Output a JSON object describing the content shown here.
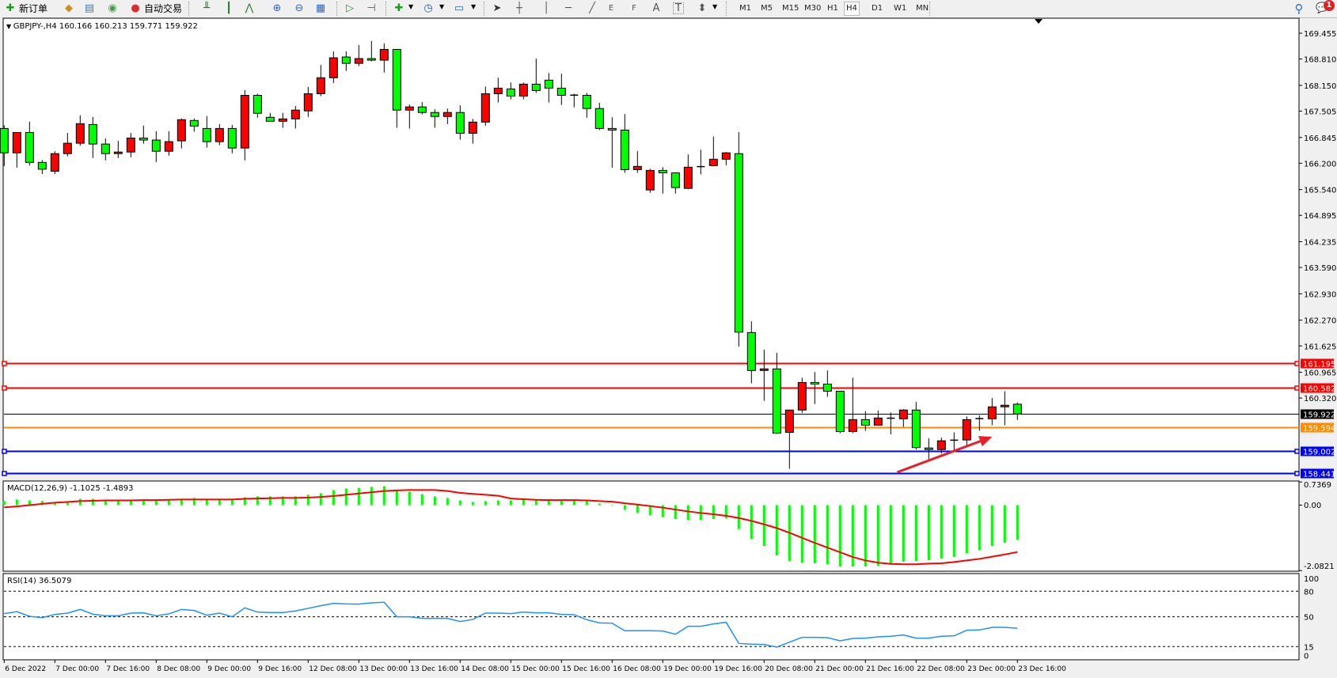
{
  "toolbar": {
    "new_order_label": "新订单",
    "auto_trading_label": "自动交易",
    "icons": [
      "new-order-icon",
      "market-watch-icon",
      "navigator-icon",
      "signal-icon",
      "auto-trading-icon",
      "bar-chart-icon",
      "candlestick-icon",
      "line-chart-icon",
      "zoom-in-icon",
      "zoom-out-icon",
      "tile-windows-icon",
      "auto-scroll-icon",
      "chart-shift-icon",
      "indicators-icon",
      "periods-icon",
      "templates-icon",
      "cursor-icon",
      "crosshair-icon",
      "vertical-line-icon",
      "horizontal-line-icon",
      "trendline-icon",
      "equidistant-channel-icon",
      "fibonacci-icon",
      "text-icon",
      "text-label-icon",
      "arrows-icon",
      "search-icon",
      "notifications-icon"
    ],
    "tool_letters": {
      "channel": "E",
      "fib": "F",
      "text": "A",
      "label": "T"
    },
    "periods": [
      "M1",
      "M5",
      "M15",
      "M30",
      "H1",
      "H4",
      "D1",
      "W1",
      "MN"
    ],
    "selected_period": "H4",
    "notification_count": "1"
  },
  "chart_header": "GBPJPY-,H4  160.166 160.213 159.771 159.922",
  "colors": {
    "bull": "#ff0000",
    "bear": "#00ff00",
    "signal": "#ff0000",
    "rsi": "#1e90ff",
    "bid_line": "#000000"
  },
  "chart_data": [
    {
      "type": "candlestick",
      "symbol": "GBPJPY-",
      "timeframe": "H4",
      "ylim": [
        158.335,
        169.455
      ],
      "y_ticks": [
        "169.455",
        "168.810",
        "168.150",
        "167.505",
        "166.845",
        "166.200",
        "165.540",
        "164.895",
        "164.235",
        "163.590",
        "162.930",
        "162.270",
        "161.625",
        "160.965",
        "160.320"
      ],
      "x_tick_labels": [
        "6 Dec 2022",
        "7 Dec 00:00",
        "7 Dec 16:00",
        "8 Dec 08:00",
        "9 Dec 00:00",
        "9 Dec 16:00",
        "12 Dec 08:00",
        "13 Dec 00:00",
        "13 Dec 16:00",
        "14 Dec 08:00",
        "15 Dec 00:00",
        "15 Dec 16:00",
        "16 Dec 08:00",
        "19 Dec 00:00",
        "19 Dec 16:00",
        "20 Dec 08:00",
        "21 Dec 00:00",
        "21 Dec 16:00",
        "22 Dec 08:00",
        "23 Dec 00:00",
        "23 Dec 16:00"
      ],
      "ohlc": [
        [
          167.07,
          167.15,
          166.13,
          166.46
        ],
        [
          166.46,
          166.97,
          166.09,
          166.97
        ],
        [
          166.97,
          167.24,
          166.14,
          166.22
        ],
        [
          166.22,
          166.28,
          165.93,
          166.05
        ],
        [
          166.0,
          166.5,
          165.93,
          166.44
        ],
        [
          166.44,
          166.96,
          166.37,
          166.7
        ],
        [
          166.7,
          167.4,
          166.64,
          167.19
        ],
        [
          167.17,
          167.36,
          166.33,
          166.68
        ],
        [
          166.68,
          166.82,
          166.27,
          166.44
        ],
        [
          166.44,
          166.76,
          166.33,
          166.48
        ],
        [
          166.48,
          166.96,
          166.35,
          166.83
        ],
        [
          166.83,
          167.14,
          166.69,
          166.78
        ],
        [
          166.78,
          167.0,
          166.23,
          166.5
        ],
        [
          166.5,
          167.0,
          166.39,
          166.74
        ],
        [
          166.76,
          167.32,
          166.57,
          167.29
        ],
        [
          167.27,
          167.32,
          166.99,
          167.13
        ],
        [
          167.07,
          167.38,
          166.59,
          166.74
        ],
        [
          166.74,
          167.18,
          166.65,
          167.07
        ],
        [
          167.07,
          167.16,
          166.45,
          166.58
        ],
        [
          166.58,
          168.03,
          166.27,
          167.9
        ],
        [
          167.9,
          167.94,
          167.34,
          167.45
        ],
        [
          167.35,
          167.46,
          167.25,
          167.25
        ],
        [
          167.25,
          167.46,
          167.09,
          167.31
        ],
        [
          167.31,
          167.63,
          167.07,
          167.53
        ],
        [
          167.51,
          168.11,
          167.36,
          167.94
        ],
        [
          167.94,
          168.66,
          167.88,
          168.34
        ],
        [
          168.34,
          169.0,
          168.21,
          168.84
        ],
        [
          168.86,
          169.0,
          168.51,
          168.7
        ],
        [
          168.7,
          169.16,
          168.63,
          168.82
        ],
        [
          168.82,
          169.26,
          168.75,
          168.78
        ],
        [
          168.78,
          169.2,
          168.47,
          169.05
        ],
        [
          169.05,
          169.05,
          167.09,
          167.53
        ],
        [
          167.53,
          167.67,
          167.07,
          167.61
        ],
        [
          167.61,
          167.73,
          167.42,
          167.47
        ],
        [
          167.47,
          167.55,
          167.09,
          167.37
        ],
        [
          167.37,
          167.57,
          167.18,
          167.47
        ],
        [
          167.47,
          167.65,
          166.79,
          166.95
        ],
        [
          166.95,
          167.31,
          166.69,
          167.23
        ],
        [
          167.23,
          168.12,
          167.14,
          167.94
        ],
        [
          167.94,
          168.34,
          167.72,
          168.08
        ],
        [
          168.06,
          168.22,
          167.8,
          167.88
        ],
        [
          167.88,
          168.22,
          167.8,
          168.18
        ],
        [
          168.18,
          168.82,
          167.96,
          168.02
        ],
        [
          168.28,
          168.46,
          167.72,
          168.08
        ],
        [
          168.08,
          168.44,
          167.66,
          167.9
        ],
        [
          167.91,
          167.94,
          167.6,
          167.9
        ],
        [
          167.9,
          167.96,
          167.34,
          167.57
        ],
        [
          167.57,
          167.71,
          167.03,
          167.07
        ],
        [
          167.07,
          167.35,
          166.09,
          167.03
        ],
        [
          167.03,
          167.43,
          165.96,
          166.04
        ],
        [
          166.04,
          166.5,
          165.96,
          166.12
        ],
        [
          165.53,
          166.06,
          165.46,
          166.02
        ],
        [
          166.02,
          166.1,
          165.44,
          165.96
        ],
        [
          165.96,
          165.96,
          165.44,
          165.59
        ],
        [
          165.57,
          166.42,
          165.55,
          166.1
        ],
        [
          166.11,
          166.54,
          165.92,
          166.12
        ],
        [
          166.14,
          166.87,
          166.12,
          166.3
        ],
        [
          166.3,
          166.48,
          166.15,
          166.46
        ],
        [
          166.44,
          166.98,
          161.61,
          161.97
        ],
        [
          161.96,
          162.24,
          160.69,
          161.01
        ],
        [
          161.01,
          161.53,
          160.25,
          161.05
        ],
        [
          161.05,
          161.45,
          159.42,
          159.44
        ],
        [
          159.46,
          160.02,
          158.55,
          160.02
        ],
        [
          160.02,
          160.83,
          159.95,
          160.71
        ],
        [
          160.71,
          160.97,
          160.17,
          160.67
        ],
        [
          160.67,
          161.01,
          160.35,
          160.49
        ],
        [
          160.49,
          160.49,
          159.44,
          159.48
        ],
        [
          159.48,
          160.83,
          159.44,
          159.78
        ],
        [
          159.78,
          159.99,
          159.5,
          159.64
        ],
        [
          159.64,
          160.01,
          159.64,
          159.82
        ],
        [
          159.82,
          159.96,
          159.41,
          159.81
        ],
        [
          159.8,
          160.04,
          159.6,
          160.02
        ],
        [
          160.02,
          160.22,
          159.03,
          159.08
        ],
        [
          159.07,
          159.31,
          158.76,
          159.03
        ],
        [
          159.03,
          159.33,
          158.93,
          159.25
        ],
        [
          159.26,
          159.46,
          158.99,
          159.27
        ],
        [
          159.27,
          159.86,
          159.12,
          159.78
        ],
        [
          159.8,
          159.89,
          159.5,
          159.81
        ],
        [
          159.8,
          160.32,
          159.64,
          160.1
        ],
        [
          160.1,
          160.49,
          159.64,
          160.14
        ],
        [
          160.166,
          160.213,
          159.771,
          159.922
        ]
      ],
      "levels": [
        {
          "price": "161.195",
          "color": "#ff0000",
          "handles": true
        },
        {
          "price": "160.582",
          "color": "#ff0000",
          "handles": true
        },
        {
          "price": "159.922",
          "color": "#000000",
          "handles": false
        },
        {
          "price": "159.594",
          "color": "#ff8c00",
          "handles": false
        },
        {
          "price": "159.002",
          "color": "#0000ff",
          "handles": true
        },
        {
          "price": "158.441",
          "color": "#0000ff",
          "handles": true
        }
      ],
      "annotation_arrow": {
        "color": "#e8202a",
        "from": {
          "candle": 70.5,
          "price": 158.46
        },
        "to": {
          "candle": 78,
          "price": 159.35
        }
      }
    },
    {
      "type": "bar",
      "title": "MACD(12,26,9) -1.1025 -1.4893",
      "ylim": [
        -2.0821,
        0.7369
      ],
      "y_ticks": [
        "0.7369",
        "0.00",
        "-2.0821"
      ],
      "main": [
        0.13,
        0.18,
        0.15,
        0.13,
        0.09,
        0.12,
        0.2,
        0.2,
        0.14,
        0.14,
        0.14,
        0.14,
        0.14,
        0.17,
        0.17,
        0.23,
        0.17,
        0.17,
        0.17,
        0.25,
        0.28,
        0.28,
        0.28,
        0.28,
        0.33,
        0.38,
        0.48,
        0.53,
        0.55,
        0.58,
        0.6,
        0.49,
        0.43,
        0.35,
        0.28,
        0.23,
        0.15,
        0.1,
        0.13,
        0.15,
        0.15,
        0.18,
        0.16,
        0.15,
        0.15,
        0.15,
        0.15,
        0.05,
        0.0,
        -0.15,
        -0.25,
        -0.32,
        -0.38,
        -0.44,
        -0.47,
        -0.47,
        -0.44,
        -0.42,
        -0.76,
        -1.07,
        -1.3,
        -1.6,
        -1.78,
        -1.83,
        -1.85,
        -1.88,
        -1.95,
        -1.95,
        -1.95,
        -1.93,
        -1.88,
        -1.8,
        -1.78,
        -1.75,
        -1.7,
        -1.65,
        -1.53,
        -1.43,
        -1.3,
        -1.2,
        -1.1025
      ],
      "signal": [
        -0.07,
        -0.04,
        0.0,
        0.04,
        0.08,
        0.1,
        0.13,
        0.14,
        0.15,
        0.15,
        0.15,
        0.16,
        0.16,
        0.17,
        0.18,
        0.18,
        0.18,
        0.18,
        0.18,
        0.2,
        0.21,
        0.22,
        0.23,
        0.23,
        0.24,
        0.26,
        0.29,
        0.33,
        0.37,
        0.41,
        0.45,
        0.47,
        0.48,
        0.48,
        0.48,
        0.45,
        0.39,
        0.36,
        0.33,
        0.3,
        0.21,
        0.19,
        0.17,
        0.16,
        0.16,
        0.16,
        0.15,
        0.13,
        0.11,
        0.06,
        0.02,
        -0.03,
        -0.08,
        -0.14,
        -0.2,
        -0.25,
        -0.29,
        -0.34,
        -0.41,
        -0.5,
        -0.61,
        -0.73,
        -0.88,
        -1.04,
        -1.2,
        -1.35,
        -1.5,
        -1.65,
        -1.76,
        -1.83,
        -1.87,
        -1.88,
        -1.88,
        -1.86,
        -1.85,
        -1.81,
        -1.76,
        -1.71,
        -1.64,
        -1.57,
        -1.4893
      ]
    },
    {
      "type": "line",
      "title": "RSI(14) 36.5079",
      "ylim": [
        0,
        100
      ],
      "y_ticks": [
        "100",
        "80",
        "50",
        "15",
        "0"
      ],
      "levels": [
        80,
        50,
        15
      ],
      "values": [
        53.7,
        56,
        50.6,
        49,
        52.8,
        54.3,
        58.6,
        53,
        51.2,
        51.2,
        54.3,
        54.6,
        51.2,
        53.4,
        58.6,
        57.4,
        51.8,
        54.3,
        50,
        60.5,
        55.5,
        55,
        55,
        56.8,
        59.9,
        63,
        65.8,
        65.1,
        64.8,
        66.4,
        67,
        50,
        50,
        48.1,
        48.1,
        48.1,
        44.4,
        46.9,
        54.3,
        54.3,
        53.7,
        55.5,
        54.6,
        54.6,
        52.8,
        52.4,
        46.6,
        42.8,
        42.5,
        33.6,
        33.6,
        33.6,
        33.3,
        29.5,
        38.8,
        38.8,
        41.6,
        43.5,
        18.7,
        17.8,
        17.5,
        14.4,
        20.2,
        25.8,
        25.8,
        25.5,
        21.8,
        24.6,
        24.9,
        26.4,
        27.1,
        28.6,
        24.9,
        24.9,
        27.1,
        27.7,
        34.2,
        34.5,
        37.6,
        37.6,
        36.5079
      ]
    }
  ]
}
